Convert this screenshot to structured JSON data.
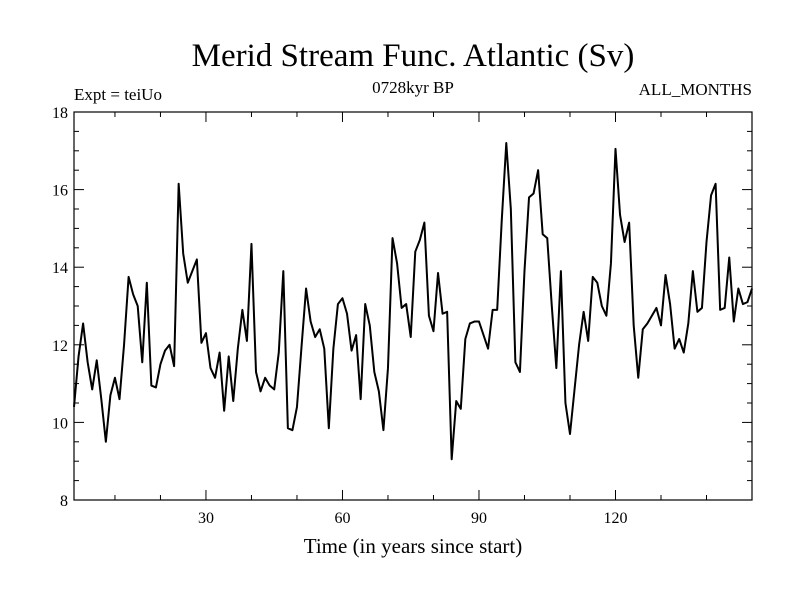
{
  "chart_data": {
    "type": "line",
    "title": "Merid Stream Func. Atlantic (Sv)",
    "subtitle_left": "Expt = teiUo",
    "subtitle_center": "0728kyr BP",
    "subtitle_right": "ALL_MONTHS",
    "xlabel": "Time (in years since start)",
    "ylabel": "",
    "xlim": [
      1,
      150
    ],
    "ylim": [
      8,
      18
    ],
    "x_ticks": [
      30,
      60,
      90,
      120
    ],
    "y_ticks": [
      8,
      10,
      12,
      14,
      16,
      18
    ],
    "colors": {
      "line": "#000000",
      "axis": "#000000",
      "background": "#ffffff"
    },
    "series": [
      {
        "name": "Merid Stream Func. Atlantic",
        "x": [
          1,
          2,
          3,
          4,
          5,
          6,
          7,
          8,
          9,
          10,
          11,
          12,
          13,
          14,
          15,
          16,
          17,
          18,
          19,
          20,
          21,
          22,
          23,
          24,
          25,
          26,
          27,
          28,
          29,
          30,
          31,
          32,
          33,
          34,
          35,
          36,
          37,
          38,
          39,
          40,
          41,
          42,
          43,
          44,
          45,
          46,
          47,
          48,
          49,
          50,
          51,
          52,
          53,
          54,
          55,
          56,
          57,
          58,
          59,
          60,
          61,
          62,
          63,
          64,
          65,
          66,
          67,
          68,
          69,
          70,
          71,
          72,
          73,
          74,
          75,
          76,
          77,
          78,
          79,
          80,
          81,
          82,
          83,
          84,
          85,
          86,
          87,
          88,
          89,
          90,
          91,
          92,
          93,
          94,
          95,
          96,
          97,
          98,
          99,
          100,
          101,
          102,
          103,
          104,
          105,
          106,
          107,
          108,
          109,
          110,
          111,
          112,
          113,
          114,
          115,
          116,
          117,
          118,
          119,
          120,
          121,
          122,
          123,
          124,
          125,
          126,
          127,
          128,
          129,
          130,
          131,
          132,
          133,
          134,
          135,
          136,
          137,
          138,
          139,
          140,
          141,
          142,
          143,
          144,
          145,
          146,
          147,
          148,
          149,
          150
        ],
        "values": [
          10.4,
          11.7,
          12.55,
          11.55,
          10.85,
          11.6,
          10.6,
          9.5,
          10.7,
          11.15,
          10.6,
          12.0,
          13.75,
          13.3,
          13.0,
          11.55,
          13.6,
          10.95,
          10.9,
          11.5,
          11.85,
          12.0,
          11.45,
          16.15,
          14.35,
          13.6,
          13.9,
          14.2,
          12.05,
          12.3,
          11.4,
          11.15,
          11.8,
          10.3,
          11.7,
          10.55,
          11.9,
          12.9,
          12.1,
          14.6,
          11.3,
          10.8,
          11.15,
          10.95,
          10.85,
          11.8,
          13.9,
          9.85,
          9.8,
          10.4,
          11.95,
          13.45,
          12.6,
          12.2,
          12.4,
          11.9,
          9.85,
          11.9,
          13.05,
          13.2,
          12.8,
          11.85,
          12.25,
          10.6,
          13.05,
          12.5,
          11.3,
          10.8,
          9.8,
          11.4,
          14.75,
          14.1,
          12.95,
          13.05,
          12.2,
          14.4,
          14.7,
          15.15,
          12.75,
          12.35,
          13.85,
          12.8,
          12.85,
          9.05,
          10.55,
          10.35,
          12.15,
          12.55,
          12.6,
          12.6,
          12.25,
          11.9,
          12.9,
          12.9,
          15.2,
          17.2,
          15.5,
          11.55,
          11.3,
          13.9,
          15.8,
          15.9,
          16.5,
          14.85,
          14.75,
          13.0,
          11.4,
          13.9,
          10.5,
          9.7,
          10.85,
          12.0,
          12.85,
          12.1,
          13.75,
          13.6,
          13.0,
          12.75,
          14.1,
          17.05,
          15.35,
          14.65,
          15.15,
          12.5,
          11.15,
          12.4,
          12.55,
          12.75,
          12.95,
          12.5,
          13.8,
          13.05,
          11.9,
          12.15,
          11.8,
          12.55,
          13.9,
          12.85,
          12.95,
          14.65,
          15.85,
          16.15,
          12.9,
          12.95,
          14.25,
          12.6,
          13.45,
          13.05,
          13.1,
          13.45
        ]
      }
    ]
  }
}
